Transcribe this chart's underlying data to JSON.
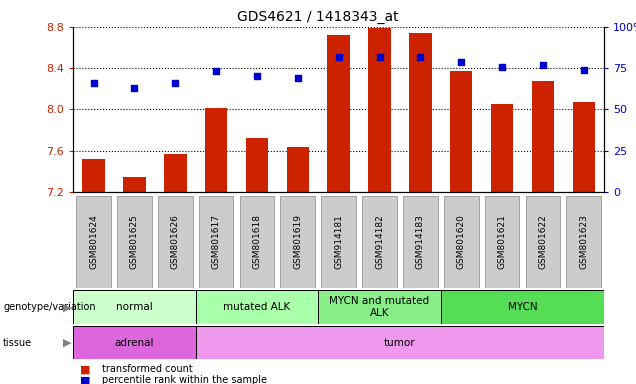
{
  "title": "GDS4621 / 1418343_at",
  "samples": [
    "GSM801624",
    "GSM801625",
    "GSM801626",
    "GSM801617",
    "GSM801618",
    "GSM801619",
    "GSM914181",
    "GSM914182",
    "GSM914183",
    "GSM801620",
    "GSM801621",
    "GSM801622",
    "GSM801623"
  ],
  "bar_values": [
    7.52,
    7.35,
    7.57,
    8.01,
    7.72,
    7.64,
    8.72,
    8.79,
    8.74,
    8.37,
    8.05,
    8.28,
    8.07
  ],
  "dot_values": [
    66,
    63,
    66,
    73,
    70,
    69,
    82,
    82,
    82,
    79,
    76,
    77,
    74
  ],
  "y_min": 7.2,
  "y_max": 8.8,
  "y_ticks": [
    7.2,
    7.6,
    8.0,
    8.4,
    8.8
  ],
  "y2_ticks": [
    0,
    25,
    50,
    75,
    100
  ],
  "bar_color": "#cc2200",
  "dot_color": "#0000cc",
  "bar_width": 0.55,
  "genotype_groups": [
    {
      "label": "normal",
      "start": 0,
      "end": 3,
      "color": "#ccffcc"
    },
    {
      "label": "mutated ALK",
      "start": 3,
      "end": 6,
      "color": "#aaffaa"
    },
    {
      "label": "MYCN and mutated\nALK",
      "start": 6,
      "end": 9,
      "color": "#88ee88"
    },
    {
      "label": "MYCN",
      "start": 9,
      "end": 13,
      "color": "#55dd55"
    }
  ],
  "tissue_groups": [
    {
      "label": "adrenal",
      "start": 0,
      "end": 3,
      "color": "#dd66dd"
    },
    {
      "label": "tumor",
      "start": 3,
      "end": 13,
      "color": "#ee99ee"
    }
  ],
  "legend_items": [
    {
      "label": "transformed count",
      "color": "#cc2200"
    },
    {
      "label": "percentile rank within the sample",
      "color": "#0000cc"
    }
  ],
  "background_color": "#ffffff",
  "plot_bg_color": "#ffffff",
  "tick_color_left": "#cc2200",
  "tick_color_right": "#0000cc",
  "label_color_left": "gray",
  "xtick_bg_color": "#cccccc",
  "genotype_label_color": "gray",
  "tissue_label_color": "gray"
}
